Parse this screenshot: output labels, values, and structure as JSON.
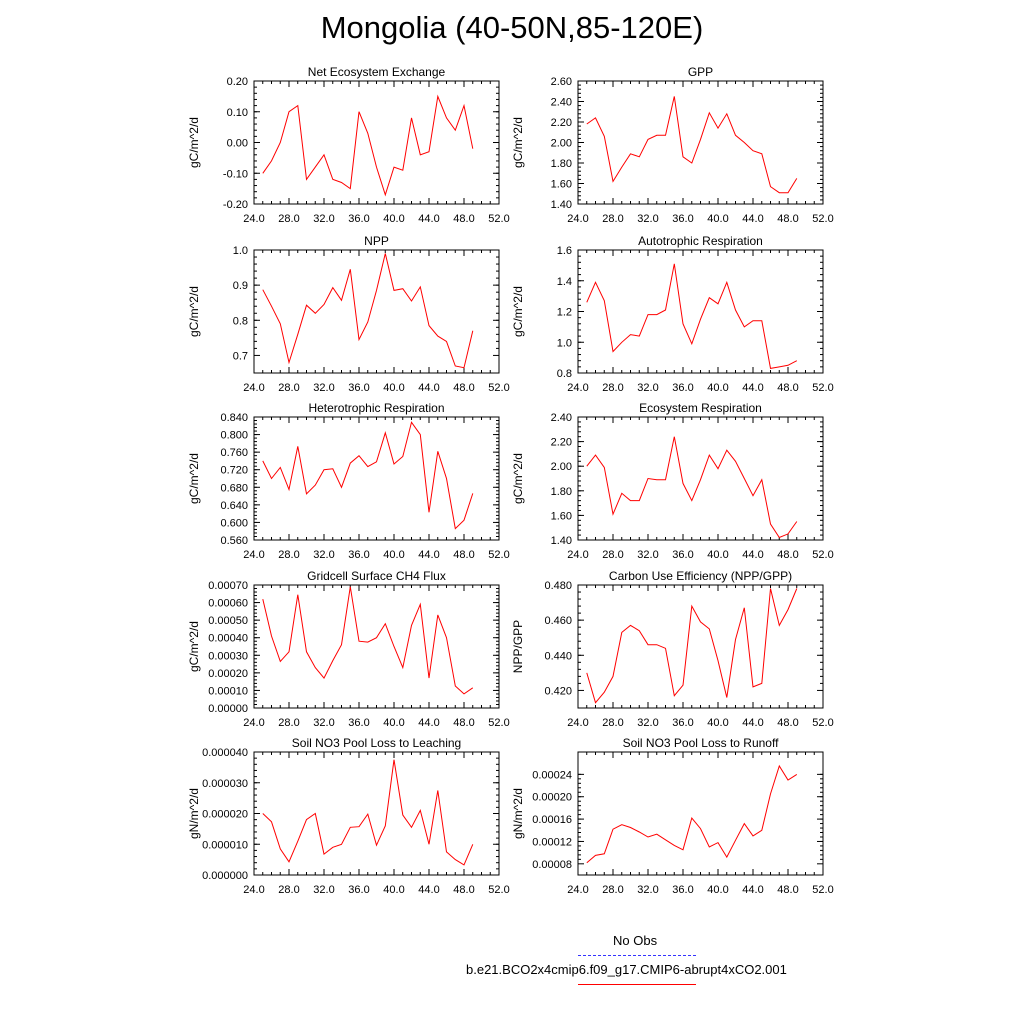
{
  "title": "Mongolia (40-50N,85-120E)",
  "colors": {
    "series": "#ff0000",
    "obs": "#3333ff",
    "axis": "#000000"
  },
  "legend": {
    "obs_label": "No Obs",
    "model_label": "b.e21.BCO2x4cmip6.f09_g17.CMIP6-abrupt4xCO2.001"
  },
  "chart_data": [
    {
      "type": "line",
      "title": "Net Ecosystem Exchange",
      "xlabel": "",
      "ylabel": "gC/m^2/d",
      "xlim": [
        24,
        52
      ],
      "ylim": [
        -0.2,
        0.2
      ],
      "xticks": [
        "24.0",
        "28.0",
        "32.0",
        "36.0",
        "40.0",
        "44.0",
        "48.0",
        "52.0"
      ],
      "yticks": [
        "0.20",
        "0.10",
        "0.00",
        "-0.10",
        "-0.20"
      ],
      "series": [
        {
          "x": [
            25,
            26,
            27,
            28,
            29,
            30,
            31,
            32,
            33,
            34,
            35,
            36,
            37,
            38,
            39,
            40,
            41,
            42,
            43,
            44,
            45,
            46,
            47,
            48,
            49
          ],
          "y": [
            -0.1,
            -0.06,
            0.0,
            0.1,
            0.12,
            -0.12,
            -0.08,
            -0.04,
            -0.12,
            -0.13,
            -0.15,
            0.1,
            0.03,
            -0.08,
            -0.17,
            -0.08,
            -0.09,
            0.08,
            -0.04,
            -0.03,
            0.15,
            0.08,
            0.04,
            0.12,
            -0.02
          ]
        }
      ]
    },
    {
      "type": "line",
      "title": "GPP",
      "xlabel": "",
      "ylabel": "gC/m^2/d",
      "xlim": [
        24,
        52
      ],
      "ylim": [
        1.4,
        2.6
      ],
      "xticks": [
        "24.0",
        "28.0",
        "32.0",
        "36.0",
        "40.0",
        "44.0",
        "48.0",
        "52.0"
      ],
      "yticks": [
        "2.60",
        "2.40",
        "2.20",
        "2.00",
        "1.80",
        "1.60",
        "1.40"
      ],
      "series": [
        {
          "x": [
            25,
            26,
            27,
            28,
            29,
            30,
            31,
            32,
            33,
            34,
            35,
            36,
            37,
            38,
            39,
            40,
            41,
            42,
            43,
            44,
            45,
            46,
            47,
            48,
            49
          ],
          "y": [
            2.18,
            2.24,
            2.06,
            1.62,
            1.76,
            1.89,
            1.86,
            2.03,
            2.07,
            2.07,
            2.45,
            1.86,
            1.8,
            2.03,
            2.29,
            2.14,
            2.28,
            2.07,
            2.0,
            1.92,
            1.89,
            1.57,
            1.51,
            1.51,
            1.65
          ]
        }
      ]
    },
    {
      "type": "line",
      "title": "NPP",
      "xlabel": "",
      "ylabel": "gC/m^2/d",
      "xlim": [
        24,
        52
      ],
      "ylim": [
        0.65,
        1.0
      ],
      "xticks": [
        "24.0",
        "28.0",
        "32.0",
        "36.0",
        "40.0",
        "44.0",
        "48.0",
        "52.0"
      ],
      "yticks": [
        "1.0",
        "0.9",
        "0.8",
        "0.7"
      ],
      "series": [
        {
          "x": [
            25,
            26,
            27,
            28,
            29,
            30,
            31,
            32,
            33,
            34,
            35,
            36,
            37,
            38,
            39,
            40,
            41,
            42,
            43,
            44,
            45,
            46,
            47,
            48,
            49
          ],
          "y": [
            0.887,
            0.84,
            0.79,
            0.68,
            0.76,
            0.843,
            0.82,
            0.845,
            0.893,
            0.857,
            0.945,
            0.745,
            0.795,
            0.885,
            0.99,
            0.885,
            0.89,
            0.855,
            0.895,
            0.785,
            0.755,
            0.74,
            0.67,
            0.665,
            0.77
          ]
        }
      ]
    },
    {
      "type": "line",
      "title": "Autotrophic Respiration",
      "xlabel": "",
      "ylabel": "gC/m^2/d",
      "xlim": [
        24,
        52
      ],
      "ylim": [
        0.8,
        1.6
      ],
      "xticks": [
        "24.0",
        "28.0",
        "32.0",
        "36.0",
        "40.0",
        "44.0",
        "48.0",
        "52.0"
      ],
      "yticks": [
        "1.6",
        "1.4",
        "1.2",
        "1.0",
        "0.8"
      ],
      "series": [
        {
          "x": [
            25,
            26,
            27,
            28,
            29,
            30,
            31,
            32,
            33,
            34,
            35,
            36,
            37,
            38,
            39,
            40,
            41,
            42,
            43,
            44,
            45,
            46,
            47,
            48,
            49
          ],
          "y": [
            1.26,
            1.39,
            1.27,
            0.94,
            1.0,
            1.05,
            1.04,
            1.18,
            1.18,
            1.21,
            1.51,
            1.12,
            0.99,
            1.15,
            1.29,
            1.25,
            1.39,
            1.21,
            1.1,
            1.14,
            1.14,
            0.83,
            0.84,
            0.85,
            0.88
          ]
        }
      ]
    },
    {
      "type": "line",
      "title": "Heterotrophic Respiration",
      "xlabel": "",
      "ylabel": "gC/m^2/d",
      "xlim": [
        24,
        52
      ],
      "ylim": [
        0.56,
        0.84
      ],
      "xticks": [
        "24.0",
        "28.0",
        "32.0",
        "36.0",
        "40.0",
        "44.0",
        "48.0",
        "52.0"
      ],
      "yticks": [
        "0.840",
        "0.800",
        "0.760",
        "0.720",
        "0.680",
        "0.640",
        "0.600",
        "0.560"
      ],
      "series": [
        {
          "x": [
            25,
            26,
            27,
            28,
            29,
            30,
            31,
            32,
            33,
            34,
            35,
            36,
            37,
            38,
            39,
            40,
            41,
            42,
            43,
            44,
            45,
            46,
            47,
            48,
            49
          ],
          "y": [
            0.74,
            0.7,
            0.725,
            0.675,
            0.773,
            0.665,
            0.685,
            0.72,
            0.722,
            0.68,
            0.735,
            0.752,
            0.727,
            0.738,
            0.804,
            0.733,
            0.75,
            0.828,
            0.8,
            0.623,
            0.762,
            0.7,
            0.586,
            0.605,
            0.666
          ]
        }
      ]
    },
    {
      "type": "line",
      "title": "Ecosystem Respiration",
      "xlabel": "",
      "ylabel": "gC/m^2/d",
      "xlim": [
        24,
        52
      ],
      "ylim": [
        1.4,
        2.4
      ],
      "xticks": [
        "24.0",
        "28.0",
        "32.0",
        "36.0",
        "40.0",
        "44.0",
        "48.0",
        "52.0"
      ],
      "yticks": [
        "2.40",
        "2.20",
        "2.00",
        "1.80",
        "1.60",
        "1.40"
      ],
      "series": [
        {
          "x": [
            25,
            26,
            27,
            28,
            29,
            30,
            31,
            32,
            33,
            34,
            35,
            36,
            37,
            38,
            39,
            40,
            41,
            42,
            43,
            44,
            45,
            46,
            47,
            48,
            49
          ],
          "y": [
            2.0,
            2.09,
            1.99,
            1.61,
            1.78,
            1.72,
            1.72,
            1.9,
            1.89,
            1.89,
            2.24,
            1.86,
            1.72,
            1.89,
            2.09,
            1.98,
            2.13,
            2.04,
            1.9,
            1.76,
            1.89,
            1.53,
            1.42,
            1.45,
            1.55
          ]
        }
      ]
    },
    {
      "type": "line",
      "title": "Gridcell Surface CH4 Flux",
      "xlabel": "",
      "ylabel": "gC/m^2/d",
      "xlim": [
        24,
        52
      ],
      "ylim": [
        0,
        0.0007
      ],
      "xticks": [
        "24.0",
        "28.0",
        "32.0",
        "36.0",
        "40.0",
        "44.0",
        "48.0",
        "52.0"
      ],
      "yticks": [
        "0.00070",
        "0.00060",
        "0.00050",
        "0.00040",
        "0.00030",
        "0.00020",
        "0.00010",
        "0.00000"
      ],
      "series": [
        {
          "x": [
            25,
            26,
            27,
            28,
            29,
            30,
            31,
            32,
            33,
            34,
            35,
            36,
            37,
            38,
            39,
            40,
            41,
            42,
            43,
            44,
            45,
            46,
            47,
            48,
            49
          ],
          "y": [
            0.00062,
            0.00041,
            0.000265,
            0.00032,
            0.000645,
            0.00032,
            0.00023,
            0.00017,
            0.00027,
            0.00036,
            0.00069,
            0.00038,
            0.000375,
            0.0004,
            0.00048,
            0.00035,
            0.00023,
            0.00047,
            0.00059,
            0.00017,
            0.00053,
            0.0004,
            0.000125,
            8e-05,
            0.000115
          ]
        }
      ]
    },
    {
      "type": "line",
      "title": "Carbon Use Efficiency (NPP/GPP)",
      "xlabel": "",
      "ylabel": "NPP/GPP",
      "xlim": [
        24,
        52
      ],
      "ylim": [
        0.41,
        0.48
      ],
      "xticks": [
        "24.0",
        "28.0",
        "32.0",
        "36.0",
        "40.0",
        "44.0",
        "48.0",
        "52.0"
      ],
      "yticks": [
        "0.480",
        "0.460",
        "0.440",
        "0.420"
      ],
      "series": [
        {
          "x": [
            25,
            26,
            27,
            28,
            29,
            30,
            31,
            32,
            33,
            34,
            35,
            36,
            37,
            38,
            39,
            40,
            41,
            42,
            43,
            44,
            45,
            46,
            47,
            48,
            49
          ],
          "y": [
            0.43,
            0.413,
            0.419,
            0.428,
            0.453,
            0.457,
            0.454,
            0.446,
            0.446,
            0.444,
            0.417,
            0.423,
            0.468,
            0.459,
            0.455,
            0.437,
            0.416,
            0.449,
            0.467,
            0.422,
            0.424,
            0.478,
            0.457,
            0.466,
            0.478
          ]
        }
      ]
    },
    {
      "type": "line",
      "title": "Soil NO3 Pool Loss to Leaching",
      "xlabel": "",
      "ylabel": "gN/m^2/d",
      "xlim": [
        24,
        52
      ],
      "ylim": [
        0,
        4e-05
      ],
      "xticks": [
        "24.0",
        "28.0",
        "32.0",
        "36.0",
        "40.0",
        "44.0",
        "48.0",
        "52.0"
      ],
      "yticks": [
        "0.000040",
        "0.000030",
        "0.000020",
        "0.000010",
        "0.000000"
      ],
      "series": [
        {
          "x": [
            25,
            26,
            27,
            28,
            29,
            30,
            31,
            32,
            33,
            34,
            35,
            36,
            37,
            38,
            39,
            40,
            41,
            42,
            43,
            44,
            45,
            46,
            47,
            48,
            49
          ],
          "y": [
            2e-05,
            1.73e-05,
            8.5e-06,
            4.3e-06,
            1.1e-05,
            1.8e-05,
            2e-05,
            6.8e-06,
            9e-06,
            1e-05,
            1.55e-05,
            1.57e-05,
            1.98e-05,
            9.7e-06,
            1.6e-05,
            3.75e-05,
            1.95e-05,
            1.55e-05,
            2.1e-05,
            1e-05,
            2.75e-05,
            7.5e-06,
            5e-06,
            3.3e-06,
            1e-05
          ]
        }
      ]
    },
    {
      "type": "line",
      "title": "Soil NO3 Pool Loss to Runoff",
      "xlabel": "",
      "ylabel": "gN/m^2/d",
      "xlim": [
        24,
        52
      ],
      "ylim": [
        6e-05,
        0.00028
      ],
      "xticks": [
        "24.0",
        "28.0",
        "32.0",
        "36.0",
        "40.0",
        "44.0",
        "48.0",
        "52.0"
      ],
      "yticks": [
        "0.00024",
        "0.00020",
        "0.00016",
        "0.00012",
        "0.00008"
      ],
      "series": [
        {
          "x": [
            25,
            26,
            27,
            28,
            29,
            30,
            31,
            32,
            33,
            34,
            35,
            36,
            37,
            38,
            39,
            40,
            41,
            42,
            43,
            44,
            45,
            46,
            47,
            48,
            49
          ],
          "y": [
            8.2e-05,
            9.5e-05,
            9.8e-05,
            0.000142,
            0.00015,
            0.000145,
            0.000137,
            0.000128,
            0.000133,
            0.000123,
            0.000113,
            0.000105,
            0.000162,
            0.000143,
            0.00011,
            0.000118,
            9.2e-05,
            0.000122,
            0.000152,
            0.00013,
            0.00014,
            0.000205,
            0.000255,
            0.00023,
            0.00024
          ]
        }
      ]
    }
  ]
}
